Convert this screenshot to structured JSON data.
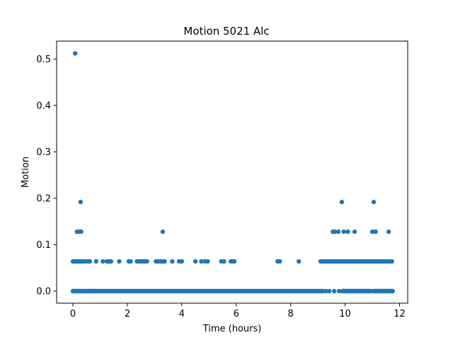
{
  "chart_data": {
    "type": "scatter",
    "title": "Motion 5021 Alc",
    "xlabel": "Time (hours)",
    "ylabel": "Motion",
    "xlim": [
      -0.6,
      12.3
    ],
    "ylim": [
      -0.026,
      0.5386
    ],
    "xticks": [
      0,
      2,
      4,
      6,
      8,
      10,
      12
    ],
    "yticks": [
      0.0,
      0.1,
      0.2,
      0.3,
      0.4,
      0.5
    ],
    "xtick_labels": [
      "0",
      "2",
      "4",
      "6",
      "8",
      "10",
      "12"
    ],
    "ytick_labels": [
      "0.0",
      "0.1",
      "0.2",
      "0.3",
      "0.4",
      "0.5"
    ],
    "grid": false,
    "marker_color": "#1f77b4",
    "zero_band": [
      [
        0.0,
        0.35
      ],
      [
        0.38,
        9.15
      ],
      [
        9.9,
        10.95
      ],
      [
        11.05,
        11.75
      ]
    ],
    "points": [
      [
        0.08,
        0.512
      ],
      [
        0.28,
        0.192
      ],
      [
        3.3,
        0.128
      ],
      [
        9.88,
        0.192
      ],
      [
        11.05,
        0.192
      ],
      [
        0.15,
        0.128
      ],
      [
        0.22,
        0.128
      ],
      [
        0.3,
        0.128
      ],
      [
        9.55,
        0.128
      ],
      [
        9.62,
        0.128
      ],
      [
        9.75,
        0.128
      ],
      [
        9.95,
        0.128
      ],
      [
        10.1,
        0.128
      ],
      [
        10.35,
        0.128
      ],
      [
        11.0,
        0.128
      ],
      [
        11.12,
        0.128
      ],
      [
        11.6,
        0.128
      ],
      [
        0.0,
        0.064
      ],
      [
        0.04,
        0.064
      ],
      [
        0.08,
        0.064
      ],
      [
        0.12,
        0.064
      ],
      [
        0.16,
        0.064
      ],
      [
        0.2,
        0.064
      ],
      [
        0.24,
        0.064
      ],
      [
        0.28,
        0.064
      ],
      [
        0.32,
        0.064
      ],
      [
        0.36,
        0.064
      ],
      [
        0.45,
        0.064
      ],
      [
        0.55,
        0.064
      ],
      [
        0.62,
        0.064
      ],
      [
        0.85,
        0.064
      ],
      [
        1.1,
        0.064
      ],
      [
        1.25,
        0.064
      ],
      [
        1.32,
        0.064
      ],
      [
        1.4,
        0.064
      ],
      [
        1.7,
        0.064
      ],
      [
        2.05,
        0.064
      ],
      [
        2.12,
        0.064
      ],
      [
        2.35,
        0.064
      ],
      [
        2.42,
        0.064
      ],
      [
        2.5,
        0.064
      ],
      [
        2.58,
        0.064
      ],
      [
        2.65,
        0.064
      ],
      [
        2.72,
        0.064
      ],
      [
        3.05,
        0.064
      ],
      [
        3.12,
        0.064
      ],
      [
        3.22,
        0.064
      ],
      [
        3.3,
        0.064
      ],
      [
        3.37,
        0.064
      ],
      [
        3.65,
        0.064
      ],
      [
        3.9,
        0.064
      ],
      [
        4.0,
        0.064
      ],
      [
        4.5,
        0.064
      ],
      [
        4.72,
        0.064
      ],
      [
        4.85,
        0.064
      ],
      [
        4.95,
        0.064
      ],
      [
        5.45,
        0.064
      ],
      [
        5.55,
        0.064
      ],
      [
        5.8,
        0.064
      ],
      [
        5.87,
        0.064
      ],
      [
        5.93,
        0.064
      ],
      [
        7.52,
        0.064
      ],
      [
        7.6,
        0.064
      ],
      [
        8.3,
        0.064
      ],
      [
        9.1,
        0.064
      ],
      [
        9.18,
        0.064
      ],
      [
        9.26,
        0.064
      ],
      [
        9.34,
        0.064
      ],
      [
        9.42,
        0.064
      ],
      [
        9.5,
        0.064
      ],
      [
        9.58,
        0.064
      ],
      [
        9.66,
        0.064
      ],
      [
        9.74,
        0.064
      ],
      [
        9.82,
        0.064
      ],
      [
        9.9,
        0.064
      ],
      [
        9.98,
        0.064
      ],
      [
        10.06,
        0.064
      ],
      [
        10.14,
        0.064
      ],
      [
        10.22,
        0.064
      ],
      [
        10.3,
        0.064
      ],
      [
        10.38,
        0.064
      ],
      [
        10.46,
        0.064
      ],
      [
        10.54,
        0.064
      ],
      [
        10.62,
        0.064
      ],
      [
        10.7,
        0.064
      ],
      [
        10.78,
        0.064
      ],
      [
        10.86,
        0.064
      ],
      [
        10.94,
        0.064
      ],
      [
        11.02,
        0.064
      ],
      [
        11.1,
        0.064
      ],
      [
        11.18,
        0.064
      ],
      [
        11.26,
        0.064
      ],
      [
        11.34,
        0.064
      ],
      [
        11.42,
        0.064
      ],
      [
        11.5,
        0.064
      ],
      [
        11.58,
        0.064
      ],
      [
        11.66,
        0.064
      ],
      [
        11.72,
        0.064
      ],
      [
        0.0,
        0.0
      ],
      [
        0.06,
        0.0
      ],
      [
        0.12,
        0.0
      ],
      [
        0.18,
        0.0
      ],
      [
        0.24,
        0.0
      ],
      [
        0.42,
        0.0
      ],
      [
        0.5,
        0.0
      ],
      [
        0.58,
        0.0
      ],
      [
        0.66,
        0.0
      ],
      [
        9.2,
        0.0
      ],
      [
        9.3,
        0.0
      ],
      [
        9.42,
        0.0
      ],
      [
        9.6,
        0.0
      ],
      [
        9.78,
        0.0
      ],
      [
        9.92,
        0.0
      ],
      [
        10.0,
        0.0
      ],
      [
        10.08,
        0.0
      ],
      [
        10.16,
        0.0
      ],
      [
        10.24,
        0.0
      ],
      [
        10.32,
        0.0
      ],
      [
        10.4,
        0.0
      ],
      [
        10.48,
        0.0
      ],
      [
        10.56,
        0.0
      ],
      [
        10.64,
        0.0
      ],
      [
        10.72,
        0.0
      ],
      [
        10.8,
        0.0
      ],
      [
        10.88,
        0.0
      ],
      [
        10.95,
        0.0
      ],
      [
        11.05,
        0.0
      ],
      [
        11.13,
        0.0
      ],
      [
        11.21,
        0.0
      ],
      [
        11.29,
        0.0
      ],
      [
        11.37,
        0.0
      ],
      [
        11.45,
        0.0
      ],
      [
        11.53,
        0.0
      ],
      [
        11.61,
        0.0
      ],
      [
        11.69,
        0.0
      ],
      [
        11.75,
        0.0
      ]
    ]
  }
}
